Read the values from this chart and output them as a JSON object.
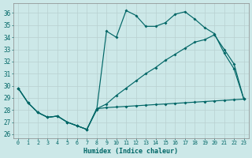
{
  "bg_color": "#cce8e8",
  "grid_color": "#c0d8d8",
  "line_color": "#006666",
  "xlabel": "Humidex (Indice chaleur)",
  "xlim": [
    -0.5,
    23.5
  ],
  "ylim": [
    25.7,
    36.8
  ],
  "yticks": [
    26,
    27,
    28,
    29,
    30,
    31,
    32,
    33,
    34,
    35,
    36
  ],
  "xticks": [
    0,
    1,
    2,
    3,
    4,
    5,
    6,
    7,
    8,
    9,
    10,
    11,
    12,
    13,
    14,
    15,
    16,
    17,
    18,
    19,
    20,
    21,
    22,
    23
  ],
  "line1_y": [
    29.8,
    28.6,
    27.8,
    27.4,
    27.5,
    27.0,
    26.7,
    26.4,
    28.0,
    34.5,
    34.0,
    36.2,
    35.8,
    34.9,
    34.9,
    35.2,
    35.9,
    36.1,
    35.5,
    34.8,
    34.3,
    32.7,
    31.4,
    28.9
  ],
  "line2_y": [
    29.8,
    28.6,
    27.8,
    27.4,
    27.5,
    27.0,
    26.7,
    26.4,
    28.1,
    28.5,
    29.2,
    29.8,
    30.4,
    31.0,
    31.5,
    32.1,
    32.6,
    33.1,
    33.6,
    33.8,
    34.2,
    33.0,
    31.8,
    28.9
  ],
  "line3_y": [
    29.8,
    28.6,
    27.8,
    27.4,
    27.5,
    27.0,
    26.7,
    26.4,
    28.1,
    28.2,
    28.25,
    28.3,
    28.35,
    28.4,
    28.45,
    28.5,
    28.55,
    28.6,
    28.65,
    28.7,
    28.75,
    28.8,
    28.85,
    28.9
  ]
}
